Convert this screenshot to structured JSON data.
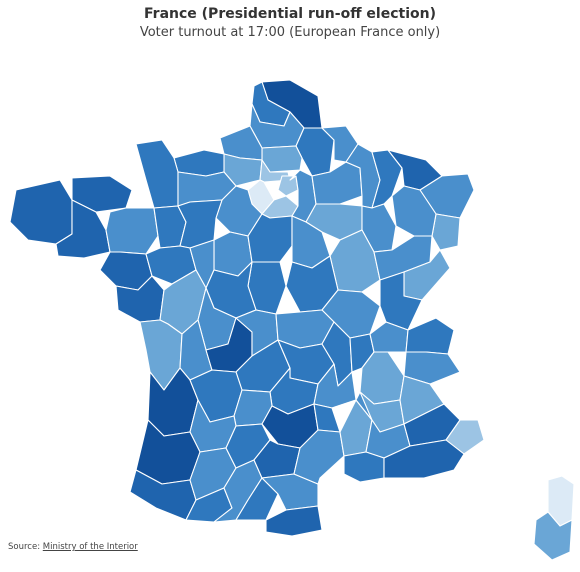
{
  "header": {
    "title": "France (Presidential run-off election)",
    "subtitle": "Voter turnout at 17:00 (European France only)"
  },
  "footer": {
    "source_label": "Source:",
    "source_link": "Ministry of the Interior"
  },
  "map": {
    "region": "France departments",
    "palette": {
      "lightest": "#dceaf6",
      "light": "#9cc4e4",
      "medium_light": "#6aa6d6",
      "medium": "#4a8fcc",
      "medium_dark": "#2f78be",
      "dark": "#1f64ae",
      "darkest": "#12509a"
    }
  }
}
